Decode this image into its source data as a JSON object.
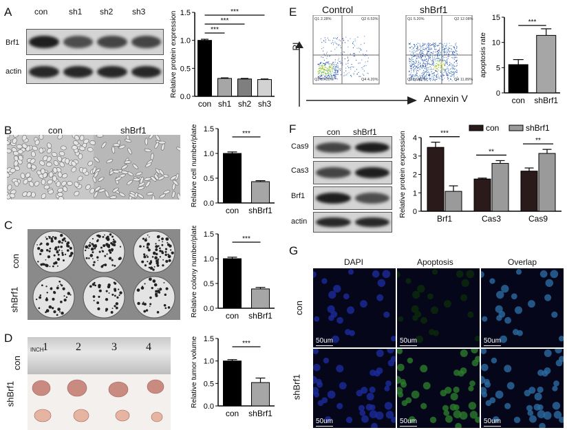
{
  "panels": {
    "A": {
      "label": "A",
      "lanes": [
        "con",
        "sh1",
        "sh2",
        "sh3"
      ],
      "rows": [
        "Brf1",
        "actin"
      ]
    },
    "B": {
      "label": "B",
      "columns": [
        "con",
        "shBrf1"
      ]
    },
    "C": {
      "label": "C",
      "rows": [
        "con",
        "shBrf1"
      ]
    },
    "D": {
      "label": "D",
      "rows": [
        "shBrf1",
        "con"
      ],
      "ruler_marks": [
        "INCH",
        "1",
        "2",
        "3",
        "4"
      ]
    },
    "E": {
      "label": "E",
      "plots": [
        {
          "title": "Control",
          "q1": "Q1\n2.28%",
          "q2": "Q2\n6.53%",
          "q3": "Q3\n87.00%",
          "q4": "Q4\n4.20%"
        },
        {
          "title": "shBrf1",
          "q1": "Q1\n5.20%",
          "q2": "Q2\n12.08%",
          "q3": "Q3\n66.82%",
          "q4": "Q4\n11.89%"
        }
      ],
      "y_axis": "PI",
      "x_axis": "Annexin V"
    },
    "F": {
      "label": "F",
      "lanes": [
        "con",
        "shBrf1"
      ],
      "rows": [
        "Cas9",
        "Cas3",
        "Brf1",
        "actin"
      ]
    },
    "G": {
      "label": "G",
      "columns": [
        "DAPI",
        "Apoptosis",
        "Overlap"
      ],
      "rows": [
        "con",
        "shBrf1"
      ],
      "scale_bar": "50um"
    }
  },
  "chart_data": [
    {
      "id": "A",
      "type": "bar",
      "categories": [
        "con",
        "sh1",
        "sh2",
        "sh3"
      ],
      "series": [
        {
          "values": [
            1.0,
            0.32,
            0.31,
            0.3
          ],
          "errors": [
            0.02,
            0.01,
            0.01,
            0.01
          ]
        }
      ],
      "colors": [
        "#000000",
        "#a6a6a6",
        "#7f7f7f",
        "#d2d2d2"
      ],
      "ylabel": "Relative protein expression",
      "ylim": [
        0,
        1.5
      ],
      "yticks": [
        "0.0",
        "0.5",
        "1.0",
        "1.5"
      ],
      "significance": [
        {
          "from": "con",
          "to": "sh1",
          "label": "***"
        },
        {
          "from": "con",
          "to": "sh2",
          "label": "***"
        },
        {
          "from": "con",
          "to": "sh3",
          "label": "***"
        }
      ]
    },
    {
      "id": "B",
      "type": "bar",
      "categories": [
        "con",
        "shBrf1"
      ],
      "series": [
        {
          "values": [
            1.0,
            0.43
          ],
          "errors": [
            0.03,
            0.02
          ]
        }
      ],
      "colors": [
        "#000000",
        "#a6a6a6"
      ],
      "ylabel": "Relative cell number/plate",
      "ylim": [
        0,
        1.5
      ],
      "yticks": [
        "0.0",
        "0.5",
        "1.0",
        "1.5"
      ],
      "significance": [
        {
          "from": "con",
          "to": "shBrf1",
          "label": "***"
        }
      ]
    },
    {
      "id": "C",
      "type": "bar",
      "categories": [
        "con",
        "shBrf1"
      ],
      "series": [
        {
          "values": [
            1.0,
            0.39
          ],
          "errors": [
            0.03,
            0.03
          ]
        }
      ],
      "colors": [
        "#000000",
        "#a6a6a6"
      ],
      "ylabel": "Relative colony number/plate",
      "ylim": [
        0,
        1.5
      ],
      "yticks": [
        "0.0",
        "0.5",
        "1.0",
        "1.5"
      ],
      "significance": [
        {
          "from": "con",
          "to": "shBrf1",
          "label": "***"
        }
      ]
    },
    {
      "id": "D",
      "type": "bar",
      "categories": [
        "con",
        "shBrf1"
      ],
      "series": [
        {
          "values": [
            1.0,
            0.52
          ],
          "errors": [
            0.03,
            0.1
          ]
        }
      ],
      "colors": [
        "#000000",
        "#a6a6a6"
      ],
      "ylabel": "Relative tumor volume",
      "ylim": [
        0,
        1.5
      ],
      "yticks": [
        "0.0",
        "0.5",
        "1.0",
        "1.5"
      ],
      "significance": [
        {
          "from": "con",
          "to": "shBrf1",
          "label": "***"
        }
      ]
    },
    {
      "id": "E",
      "type": "bar",
      "categories": [
        "con",
        "shBrf1"
      ],
      "series": [
        {
          "values": [
            5.6,
            11.4
          ],
          "errors": [
            1.0,
            1.3
          ]
        }
      ],
      "colors": [
        "#000000",
        "#a6a6a6"
      ],
      "ylabel": "apoptosis rate",
      "ylim": [
        0,
        15
      ],
      "yticks": [
        "0",
        "5",
        "10",
        "15"
      ],
      "significance": [
        {
          "from": "con",
          "to": "shBrf1",
          "label": "***"
        }
      ]
    },
    {
      "id": "F",
      "type": "bar",
      "categories": [
        "Brf1",
        "Cas3",
        "Cas9"
      ],
      "series": [
        {
          "name": "con",
          "values": [
            3.47,
            1.75,
            2.18
          ],
          "errors": [
            0.28,
            0.05,
            0.17
          ]
        },
        {
          "name": "shBrf1",
          "values": [
            1.08,
            2.6,
            3.14
          ],
          "errors": [
            0.3,
            0.15,
            0.22
          ]
        }
      ],
      "colors": [
        "#2a1a1a",
        "#9a9a9a"
      ],
      "ylabel": "Relative protein expression",
      "ylim": [
        0,
        4
      ],
      "yticks": [
        "0",
        "1",
        "2",
        "3",
        "4"
      ],
      "legend": "top",
      "significance": [
        {
          "group": "Brf1",
          "label": "***"
        },
        {
          "group": "Cas3",
          "label": "**"
        },
        {
          "group": "Cas9",
          "label": "**"
        }
      ]
    }
  ]
}
